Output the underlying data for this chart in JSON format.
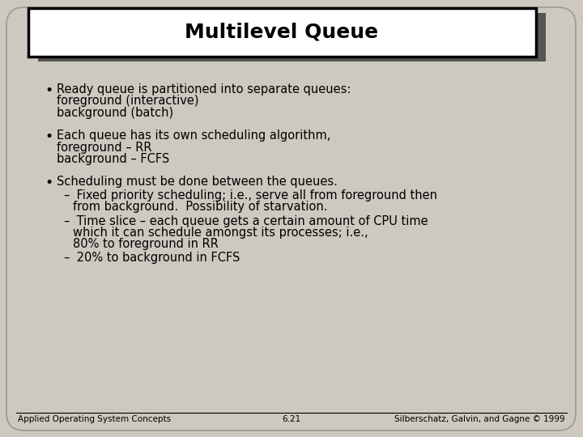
{
  "title": "Multilevel Queue",
  "bg_color": "#cdc9c0",
  "slide_bg": "#cdc9c0",
  "title_bg": "#ffffff",
  "title_fontsize": 18,
  "body_fontsize": 10.5,
  "footer_fontsize": 7.5,
  "footer_left": "Applied Operating System Concepts",
  "footer_center": "6.21",
  "footer_right": "Silberschatz, Galvin, and Gagne © 1999",
  "bullet1_line1": "Ready queue is partitioned into separate queues:",
  "bullet1_line2": "foreground (interactive)",
  "bullet1_line3": "background (batch)",
  "bullet2_line1": "Each queue has its own scheduling algorithm,",
  "bullet2_line2": "foreground – RR",
  "bullet2_line3": "background – FCFS",
  "bullet3_line1": "Scheduling must be done between the queues.",
  "sub1_dash": "–",
  "sub1_line1": " Fixed priority scheduling; i.e., serve all from foreground then",
  "sub1_line2": "from background.  Possibility of starvation.",
  "sub2_dash": "–",
  "sub2_line1": " Time slice – each queue gets a certain amount of CPU time",
  "sub2_line2": "which it can schedule amongst its processes; i.e.,",
  "sub2_line3": "80% to foreground in RR",
  "sub3_dash": "–",
  "sub3_line1": " 20% to background in FCFS"
}
